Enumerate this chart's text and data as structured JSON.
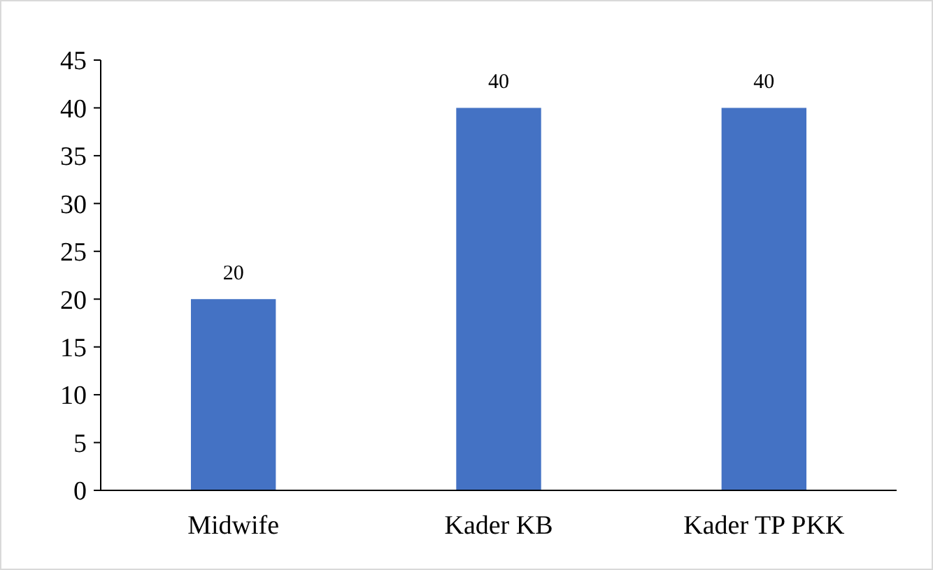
{
  "chart_data": {
    "type": "bar",
    "categories": [
      "Midwife",
      "Kader KB",
      "Kader TP PKK"
    ],
    "values": [
      20,
      40,
      40
    ],
    "color": "#4472c4",
    "ylim": [
      0,
      45
    ],
    "yticks": [
      0,
      5,
      10,
      15,
      20,
      25,
      30,
      35,
      40,
      45
    ],
    "data_labels": true
  }
}
